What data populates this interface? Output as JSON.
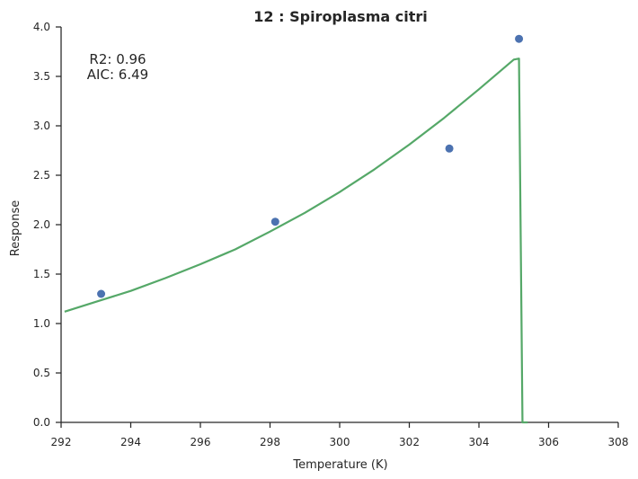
{
  "chart_data": {
    "type": "scatter",
    "title": "12 : Spiroplasma citri",
    "xlabel": "Temperature (K)",
    "ylabel": "Response",
    "xlim": [
      292,
      308
    ],
    "ylim": [
      0.0,
      4.0
    ],
    "xticks": [
      "292",
      "294",
      "296",
      "298",
      "300",
      "302",
      "304",
      "306",
      "308"
    ],
    "yticks": [
      "0.0",
      "0.5",
      "1.0",
      "1.5",
      "2.0",
      "2.5",
      "3.0",
      "3.5",
      "4.0"
    ],
    "grid": false,
    "annotation": {
      "r2": "R2: 0.96",
      "aic": "AIC: 6.49"
    },
    "colors": {
      "points": "#4c72b0",
      "fit": "#55a868",
      "axis": "#262626"
    },
    "series": [
      {
        "kind": "points",
        "x": [
          293.15,
          298.15,
          303.15,
          305.15
        ],
        "y": [
          1.3,
          2.03,
          2.77,
          3.88
        ]
      },
      {
        "kind": "fit-line",
        "x": [
          292.1,
          293.0,
          294.0,
          295.0,
          296.0,
          297.0,
          298.0,
          299.0,
          300.0,
          301.0,
          302.0,
          303.0,
          304.0,
          305.0,
          305.15,
          305.25,
          305.4
        ],
        "y": [
          1.12,
          1.22,
          1.33,
          1.46,
          1.6,
          1.75,
          1.93,
          2.12,
          2.33,
          2.56,
          2.81,
          3.08,
          3.37,
          3.67,
          3.68,
          0.0,
          0.0
        ]
      }
    ]
  }
}
